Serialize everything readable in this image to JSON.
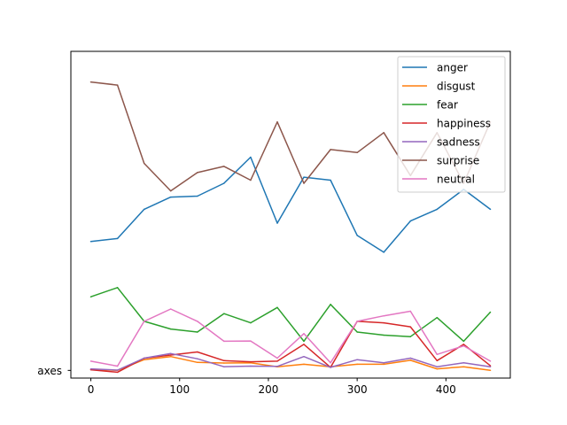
{
  "chart_data": {
    "type": "line",
    "title": "",
    "xlabel": "",
    "ylabel": "",
    "x": [
      0,
      30,
      60,
      90,
      120,
      150,
      180,
      210,
      240,
      270,
      300,
      330,
      360,
      390,
      420,
      450
    ],
    "xlim": [
      -22.5,
      472.5
    ],
    "ylim": [
      -0.025,
      1.04
    ],
    "x_ticks": [
      0,
      100,
      200,
      300,
      400
    ],
    "x_tick_labels": [
      "0",
      "100",
      "200",
      "300",
      "400"
    ],
    "y_tick_values": [
      0
    ],
    "y_tick_labels": [
      "axes"
    ],
    "grid": false,
    "legend": "top-right",
    "series": [
      {
        "name": "anger",
        "color": "#1f77b4",
        "values": [
          0.42,
          0.43,
          0.525,
          0.565,
          0.568,
          0.61,
          0.695,
          0.48,
          0.63,
          0.62,
          0.44,
          0.385,
          0.487,
          0.525,
          0.59,
          0.525
        ]
      },
      {
        "name": "disgust",
        "color": "#ff7f0e",
        "values": [
          0.003,
          0.0,
          0.035,
          0.045,
          0.026,
          0.024,
          0.025,
          0.012,
          0.02,
          0.012,
          0.02,
          0.02,
          0.033,
          0.005,
          0.012,
          0.0
        ]
      },
      {
        "name": "fear",
        "color": "#2ca02c",
        "values": [
          0.24,
          0.27,
          0.16,
          0.135,
          0.125,
          0.185,
          0.155,
          0.205,
          0.095,
          0.215,
          0.125,
          0.115,
          0.11,
          0.172,
          0.095,
          0.19
        ]
      },
      {
        "name": "happiness",
        "color": "#d62728",
        "values": [
          0.002,
          -0.006,
          0.04,
          0.05,
          0.06,
          0.032,
          0.028,
          0.03,
          0.085,
          0.01,
          0.16,
          0.155,
          0.142,
          0.032,
          0.085,
          0.015
        ]
      },
      {
        "name": "sadness",
        "color": "#9467bd",
        "values": [
          0.005,
          0.001,
          0.04,
          0.055,
          0.038,
          0.012,
          0.014,
          0.013,
          0.045,
          0.01,
          0.035,
          0.025,
          0.04,
          0.012,
          0.025,
          0.012
        ]
      },
      {
        "name": "surprise",
        "color": "#8c564b",
        "values": [
          0.94,
          0.93,
          0.675,
          0.585,
          0.645,
          0.665,
          0.62,
          0.81,
          0.61,
          0.72,
          0.71,
          0.775,
          0.635,
          0.775,
          0.61,
          0.81
        ]
      },
      {
        "name": "neutral",
        "color": "#e377c2",
        "values": [
          0.03,
          0.014,
          0.16,
          0.2,
          0.16,
          0.095,
          0.096,
          0.04,
          0.12,
          0.025,
          0.16,
          0.178,
          0.193,
          0.052,
          0.08,
          0.03
        ]
      }
    ]
  }
}
